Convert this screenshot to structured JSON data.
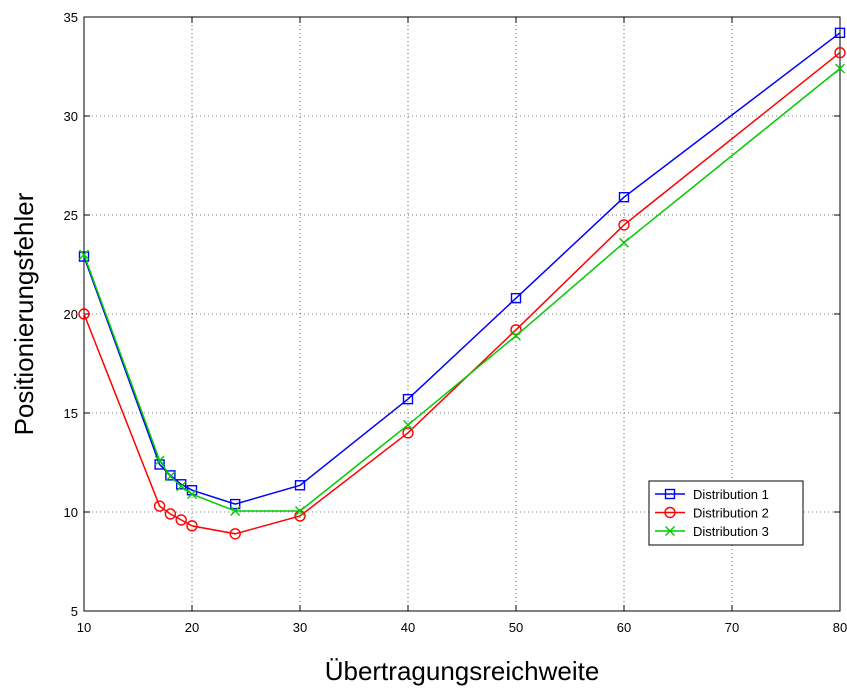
{
  "chart_data": {
    "type": "line",
    "title": "",
    "xlabel": "Übertragungsreichweite",
    "ylabel": "Positionierungsfehler",
    "xlim": [
      10,
      80
    ],
    "ylim": [
      5,
      35
    ],
    "xticks": [
      10,
      20,
      30,
      40,
      50,
      60,
      70,
      80
    ],
    "yticks": [
      5,
      10,
      15,
      20,
      25,
      30,
      35
    ],
    "grid": true,
    "legend_position": "bottom-right",
    "series": [
      {
        "name": "Distribution 1",
        "color": "#0000ff",
        "marker": "square",
        "x": [
          10,
          17,
          18,
          19,
          20,
          24,
          30,
          40,
          50,
          60,
          80
        ],
        "y": [
          22.9,
          12.4,
          11.85,
          11.4,
          11.1,
          10.4,
          11.35,
          15.7,
          20.8,
          25.9,
          34.2
        ]
      },
      {
        "name": "Distribution 2",
        "color": "#ff0000",
        "marker": "circle",
        "x": [
          10,
          17,
          18,
          19,
          20,
          24,
          30,
          40,
          50,
          60,
          80
        ],
        "y": [
          20.0,
          10.3,
          9.9,
          9.6,
          9.3,
          8.9,
          9.8,
          14.0,
          19.2,
          24.5,
          33.2
        ]
      },
      {
        "name": "Distribution 3",
        "color": "#00cc00",
        "marker": "x",
        "x": [
          10,
          17,
          18,
          19,
          20,
          24,
          30,
          40,
          50,
          60,
          80
        ],
        "y": [
          23.0,
          12.6,
          11.8,
          11.3,
          10.9,
          10.05,
          10.05,
          14.4,
          18.9,
          23.6,
          32.4
        ]
      }
    ]
  }
}
